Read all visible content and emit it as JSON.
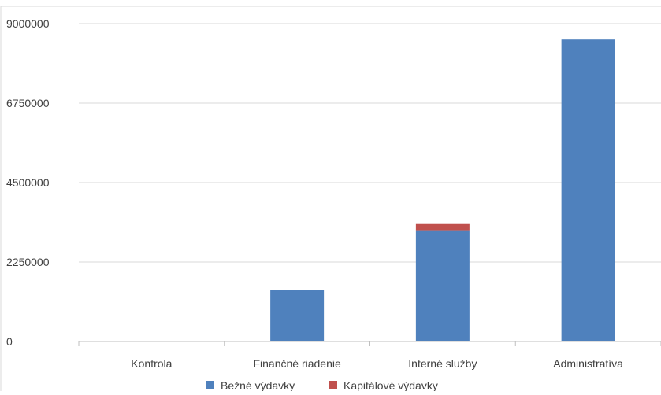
{
  "chart_data": {
    "type": "bar",
    "stacked": true,
    "categories": [
      "Kontrola",
      "Finančné riadenie",
      "Interné služby",
      "Administratíva"
    ],
    "series": [
      {
        "name": "Bežné výdavky",
        "color": "#4f81bd",
        "values": [
          0,
          1450000,
          3150000,
          8550000
        ]
      },
      {
        "name": "Kapitálové výdavky",
        "color": "#c0504d",
        "values": [
          0,
          0,
          220000,
          0
        ]
      }
    ],
    "ylim": [
      0,
      9000000
    ],
    "yticks": [
      "0",
      "2250000",
      "4500000",
      "6750000",
      "9000000"
    ],
    "grid": true,
    "legend_position": "bottom"
  }
}
